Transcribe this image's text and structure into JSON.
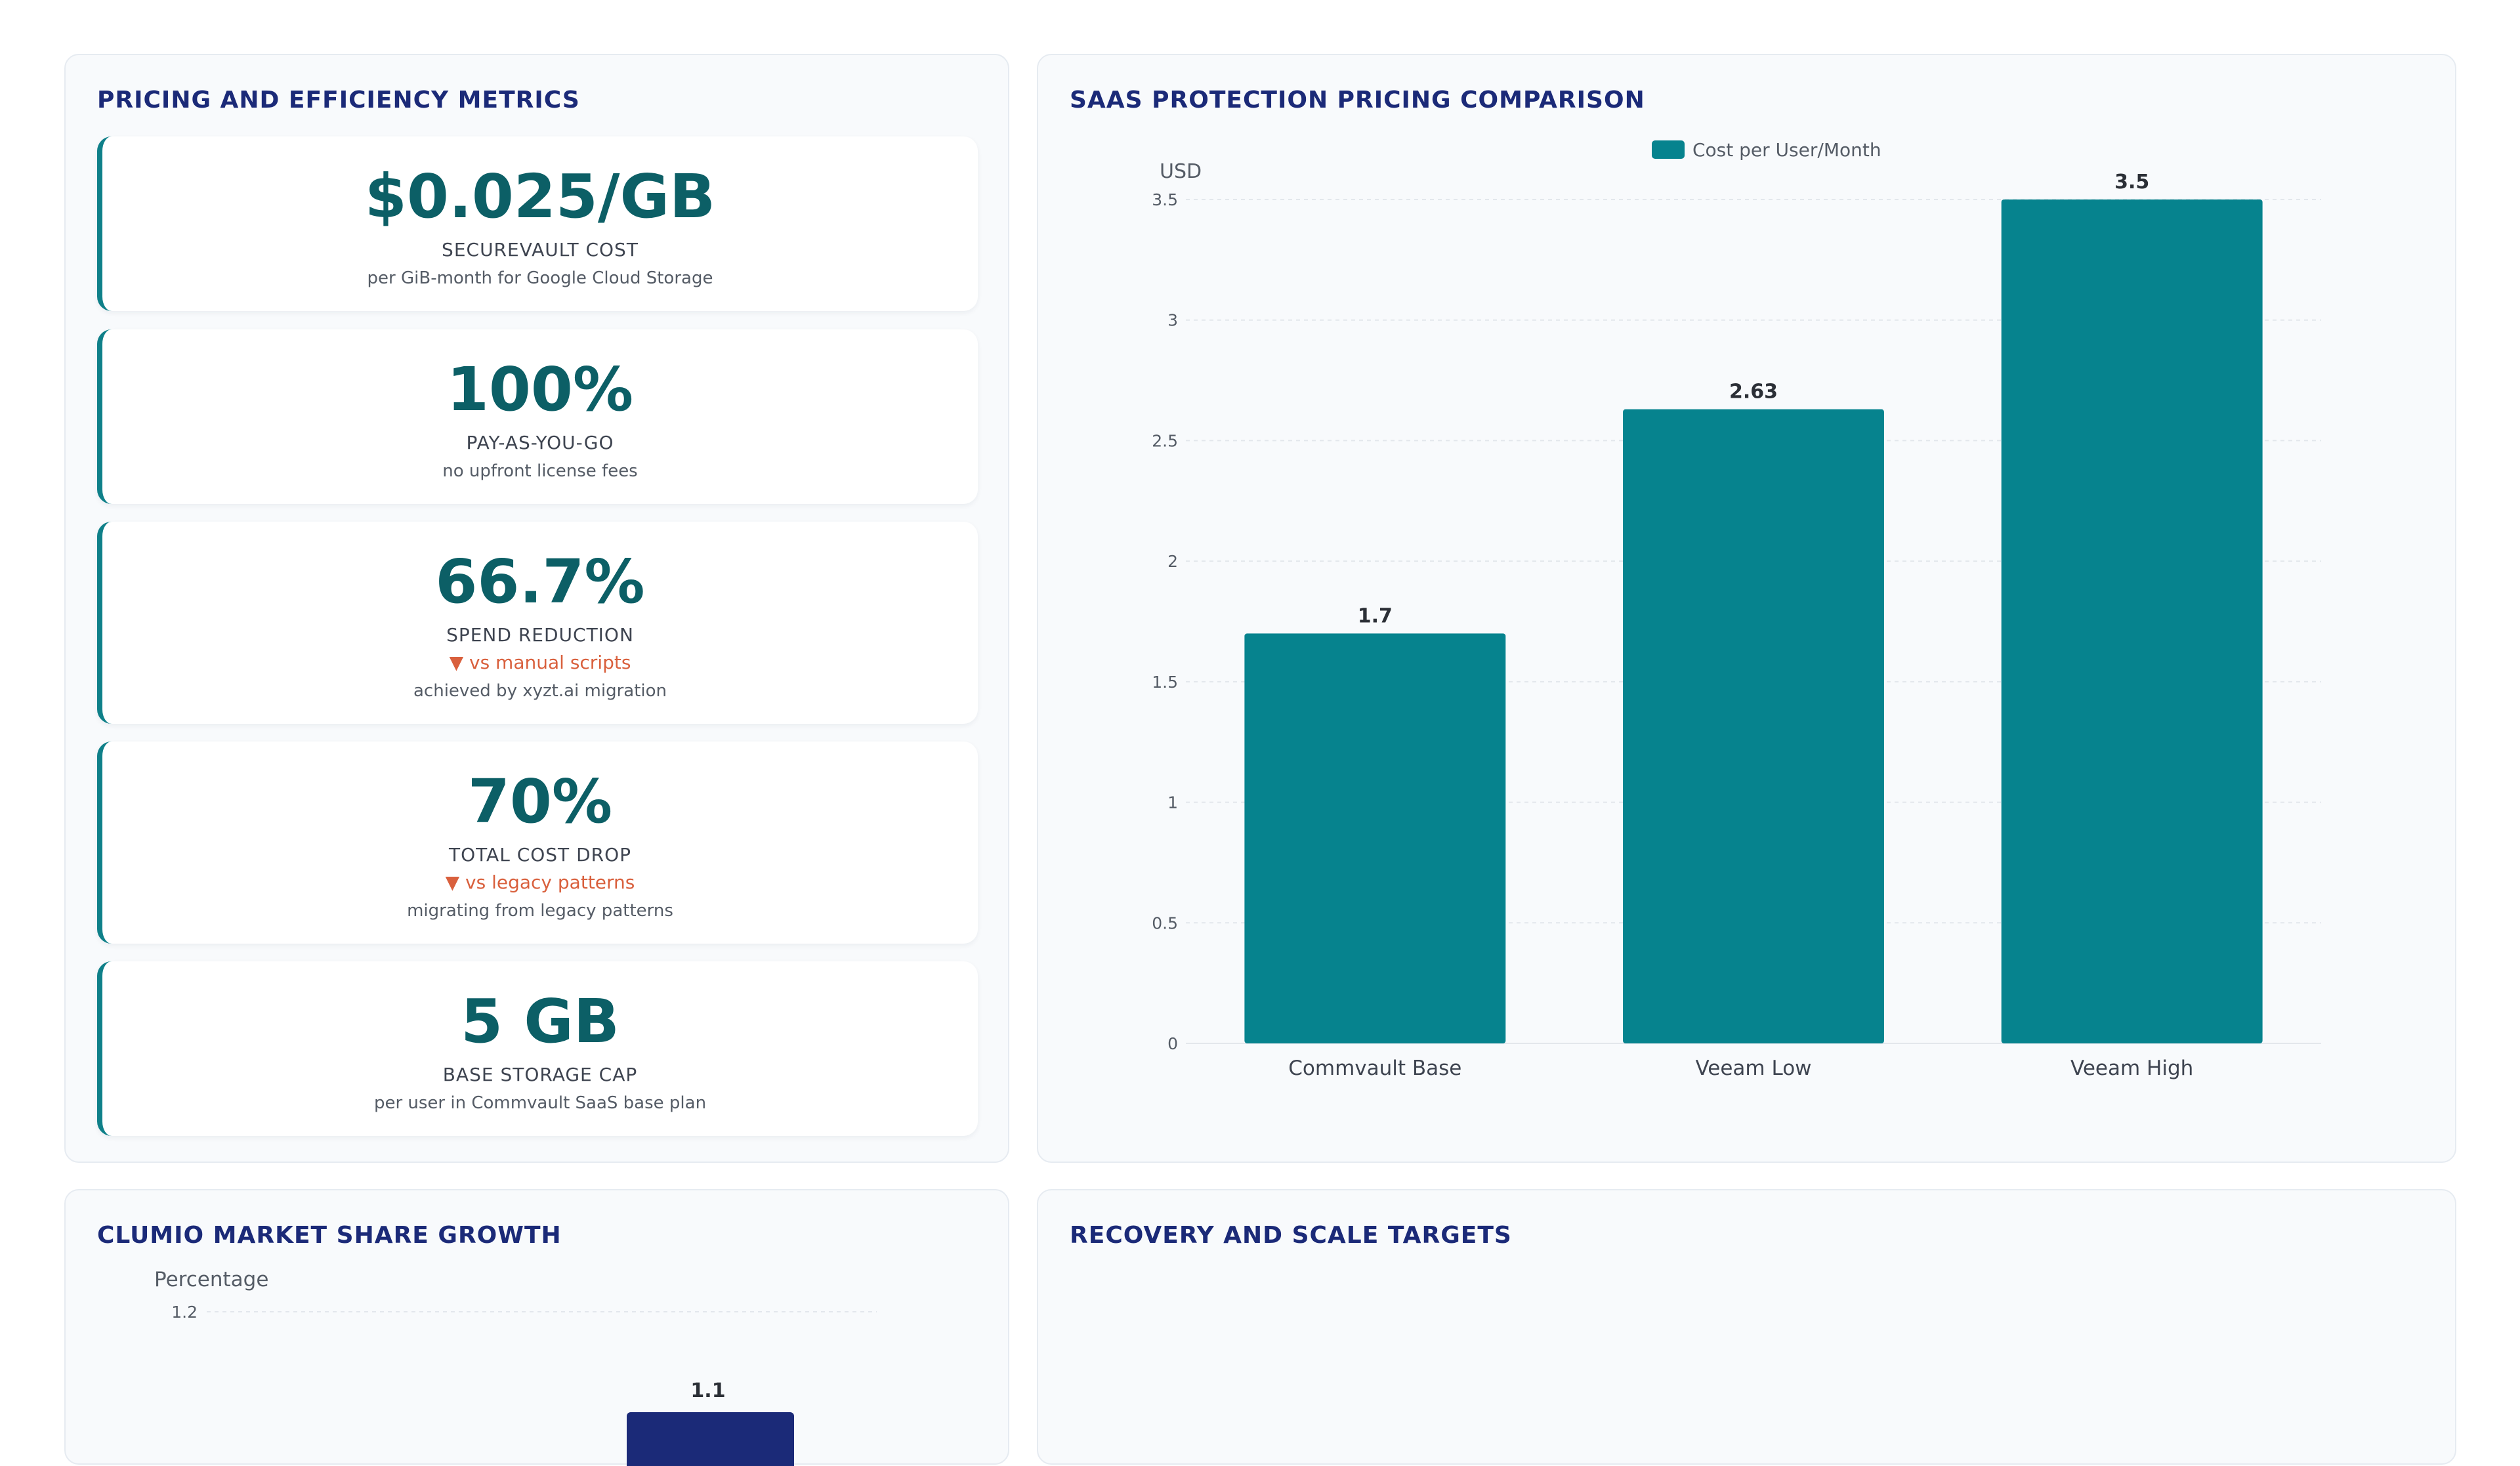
{
  "panels": {
    "metrics_title": "PRICING AND EFFICIENCY METRICS",
    "pricing_title": "SAAS PROTECTION PRICING COMPARISON",
    "market_title": "CLUMIO MARKET SHARE GROWTH",
    "recovery_title": "RECOVERY AND SCALE TARGETS"
  },
  "metrics": [
    {
      "value": "$0.025/GB",
      "label": "SECUREVAULT COST",
      "delta": "",
      "sub": "per GiB-month for Google Cloud Storage"
    },
    {
      "value": "100%",
      "label": "PAY-AS-YOU-GO",
      "delta": "",
      "sub": "no upfront license fees"
    },
    {
      "value": "66.7%",
      "label": "SPEND REDUCTION",
      "delta": "▼ vs manual scripts",
      "sub": "achieved by xyzt.ai migration"
    },
    {
      "value": "70%",
      "label": "TOTAL COST DROP",
      "delta": "▼ vs legacy patterns",
      "sub": "migrating from legacy patterns"
    },
    {
      "value": "5 GB",
      "label": "BASE STORAGE CAP",
      "delta": "",
      "sub": "per user in Commvault SaaS base plan"
    }
  ],
  "chart_data": [
    {
      "type": "bar",
      "title": "SAAS PROTECTION PRICING COMPARISON",
      "categories": [
        "Commvault Base",
        "Veeam Low",
        "Veeam High"
      ],
      "series": [
        {
          "name": "Cost per User/Month",
          "values": [
            1.7,
            2.63,
            3.5
          ]
        }
      ],
      "ylabel": "USD",
      "ylim": [
        0,
        3.5
      ],
      "yticks": [
        0,
        0.5,
        1,
        1.5,
        2,
        2.5,
        3,
        3.5
      ],
      "grid": true,
      "legend": "top-center",
      "color": "#06838e"
    },
    {
      "type": "bar",
      "title": "CLUMIO MARKET SHARE GROWTH",
      "ylabel": "Percentage",
      "yticks": [
        1.2
      ],
      "visible_value_labels": [
        "1.1"
      ],
      "color": "#1b2a78"
    }
  ]
}
